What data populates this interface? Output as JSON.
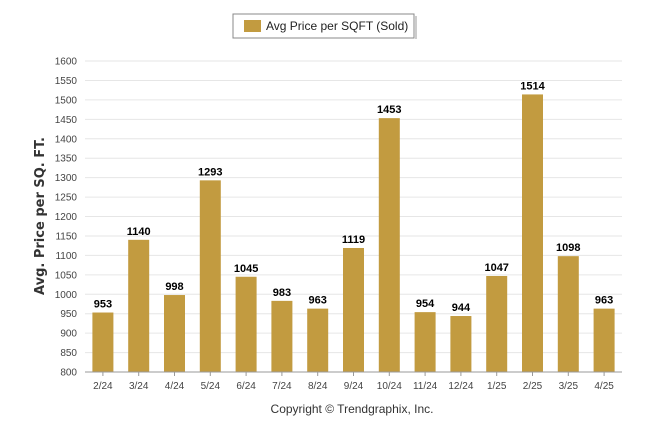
{
  "chart_data": {
    "type": "bar",
    "legend": {
      "label": "Avg Price per SQFT (Sold)",
      "position": "top-center"
    },
    "ylabel": "Avg. Price per SQ. FT.",
    "xlabel": "",
    "ylim": [
      800,
      1600
    ],
    "yticks": [
      800,
      850,
      900,
      950,
      1000,
      1050,
      1100,
      1150,
      1200,
      1250,
      1300,
      1350,
      1400,
      1450,
      1500,
      1550,
      1600
    ],
    "grid": true,
    "bar_color": "#C29B40",
    "categories": [
      "2/24",
      "3/24",
      "4/24",
      "5/24",
      "6/24",
      "7/24",
      "8/24",
      "9/24",
      "10/24",
      "11/24",
      "12/24",
      "1/25",
      "2/25",
      "3/25",
      "4/25"
    ],
    "series": [
      {
        "name": "Avg Price per SQFT (Sold)",
        "values": [
          953,
          1140,
          998,
          1293,
          1045,
          983,
          963,
          1119,
          1453,
          954,
          944,
          1047,
          1514,
          1098,
          963
        ]
      }
    ]
  },
  "footer": {
    "copyright": "Copyright © Trendgraphix, Inc."
  }
}
